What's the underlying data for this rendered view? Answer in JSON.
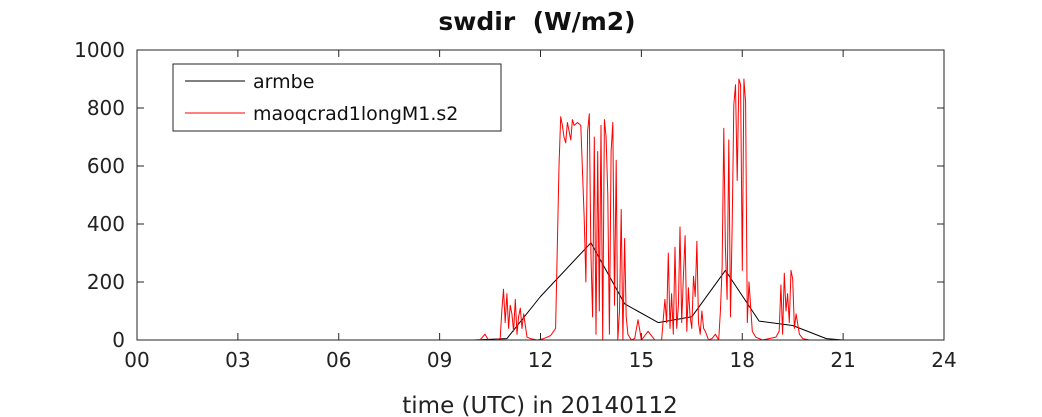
{
  "chart_data": {
    "type": "line",
    "title": "swdir  (W/m2)",
    "xlabel": "time (UTC) in 20140112",
    "ylabel": "",
    "xlim": [
      0,
      24
    ],
    "ylim": [
      0,
      1000
    ],
    "x_ticks": [
      0,
      3,
      6,
      9,
      12,
      15,
      18,
      21,
      24
    ],
    "x_tick_labels": [
      "00",
      "03",
      "06",
      "09",
      "12",
      "15",
      "18",
      "21",
      "24"
    ],
    "y_ticks": [
      0,
      200,
      400,
      600,
      800,
      1000
    ],
    "y_tick_labels": [
      "0",
      "200",
      "400",
      "600",
      "800",
      "1000"
    ],
    "grid": false,
    "legend_position": "top-left",
    "series": [
      {
        "name": "armbe",
        "color": "#000000",
        "x": [
          0,
          1,
          2,
          3,
          4,
          5,
          6,
          7,
          8,
          9,
          10,
          11,
          12,
          13.5,
          14.5,
          15.5,
          16.5,
          17.5,
          18.5,
          19.5,
          20.5,
          21,
          22,
          23,
          24
        ],
        "y": [
          0,
          0,
          0,
          0,
          0,
          0,
          0,
          0,
          0,
          0,
          0,
          5,
          150,
          335,
          125,
          60,
          80,
          240,
          65,
          50,
          5,
          0,
          0,
          0,
          0
        ]
      },
      {
        "name": "maoqcrad1longM1.s2",
        "color": "#ff0000",
        "x": [
          0,
          10.2,
          10.35,
          10.45,
          10.6,
          10.8,
          10.85,
          10.9,
          10.95,
          11.0,
          11.05,
          11.1,
          11.15,
          11.2,
          11.25,
          11.3,
          11.35,
          11.4,
          11.45,
          11.5,
          11.6,
          11.7,
          11.9,
          12.1,
          12.3,
          12.45,
          12.55,
          12.6,
          12.65,
          12.7,
          12.75,
          12.8,
          12.85,
          12.9,
          12.95,
          13.0,
          13.1,
          13.2,
          13.3,
          13.35,
          13.4,
          13.45,
          13.5,
          13.55,
          13.6,
          13.65,
          13.7,
          13.75,
          13.8,
          13.85,
          13.9,
          13.95,
          14.0,
          14.05,
          14.1,
          14.15,
          14.2,
          14.25,
          14.3,
          14.35,
          14.4,
          14.45,
          14.5,
          14.55,
          14.6,
          14.7,
          14.8,
          14.9,
          15.0,
          15.2,
          15.4,
          15.6,
          15.7,
          15.75,
          15.8,
          15.85,
          15.9,
          15.95,
          16.0,
          16.05,
          16.1,
          16.15,
          16.2,
          16.25,
          16.3,
          16.35,
          16.4,
          16.45,
          16.5,
          16.55,
          16.6,
          16.65,
          16.7,
          16.75,
          16.8,
          16.85,
          16.9,
          17.0,
          17.1,
          17.2,
          17.3,
          17.35,
          17.4,
          17.45,
          17.5,
          17.55,
          17.6,
          17.65,
          17.7,
          17.75,
          17.8,
          17.85,
          17.9,
          17.95,
          18.0,
          18.05,
          18.1,
          18.15,
          18.2,
          18.3,
          18.4,
          18.6,
          18.8,
          19.0,
          19.1,
          19.15,
          19.2,
          19.25,
          19.3,
          19.35,
          19.4,
          19.45,
          19.5,
          19.55,
          19.6,
          19.7,
          19.8,
          20.0,
          20.5,
          24
        ],
        "y": [
          0,
          0,
          20,
          0,
          0,
          5,
          100,
          175,
          60,
          160,
          40,
          120,
          90,
          30,
          140,
          20,
          80,
          110,
          40,
          90,
          10,
          5,
          0,
          5,
          15,
          40,
          600,
          770,
          740,
          700,
          680,
          750,
          720,
          690,
          760,
          740,
          750,
          740,
          420,
          200,
          720,
          780,
          300,
          80,
          700,
          20,
          650,
          100,
          740,
          0,
          760,
          700,
          500,
          20,
          650,
          750,
          120,
          620,
          0,
          100,
          450,
          0,
          350,
          80,
          20,
          0,
          5,
          70,
          0,
          30,
          0,
          0,
          140,
          60,
          300,
          40,
          160,
          20,
          320,
          40,
          120,
          390,
          60,
          220,
          360,
          30,
          180,
          80,
          40,
          220,
          150,
          340,
          60,
          20,
          100,
          40,
          30,
          0,
          5,
          20,
          0,
          100,
          250,
          730,
          320,
          140,
          690,
          80,
          400,
          810,
          880,
          550,
          900,
          880,
          240,
          900,
          820,
          60,
          200,
          30,
          10,
          0,
          5,
          10,
          30,
          190,
          20,
          230,
          100,
          160,
          60,
          240,
          210,
          40,
          90,
          20,
          5,
          0,
          0,
          0
        ]
      }
    ]
  }
}
